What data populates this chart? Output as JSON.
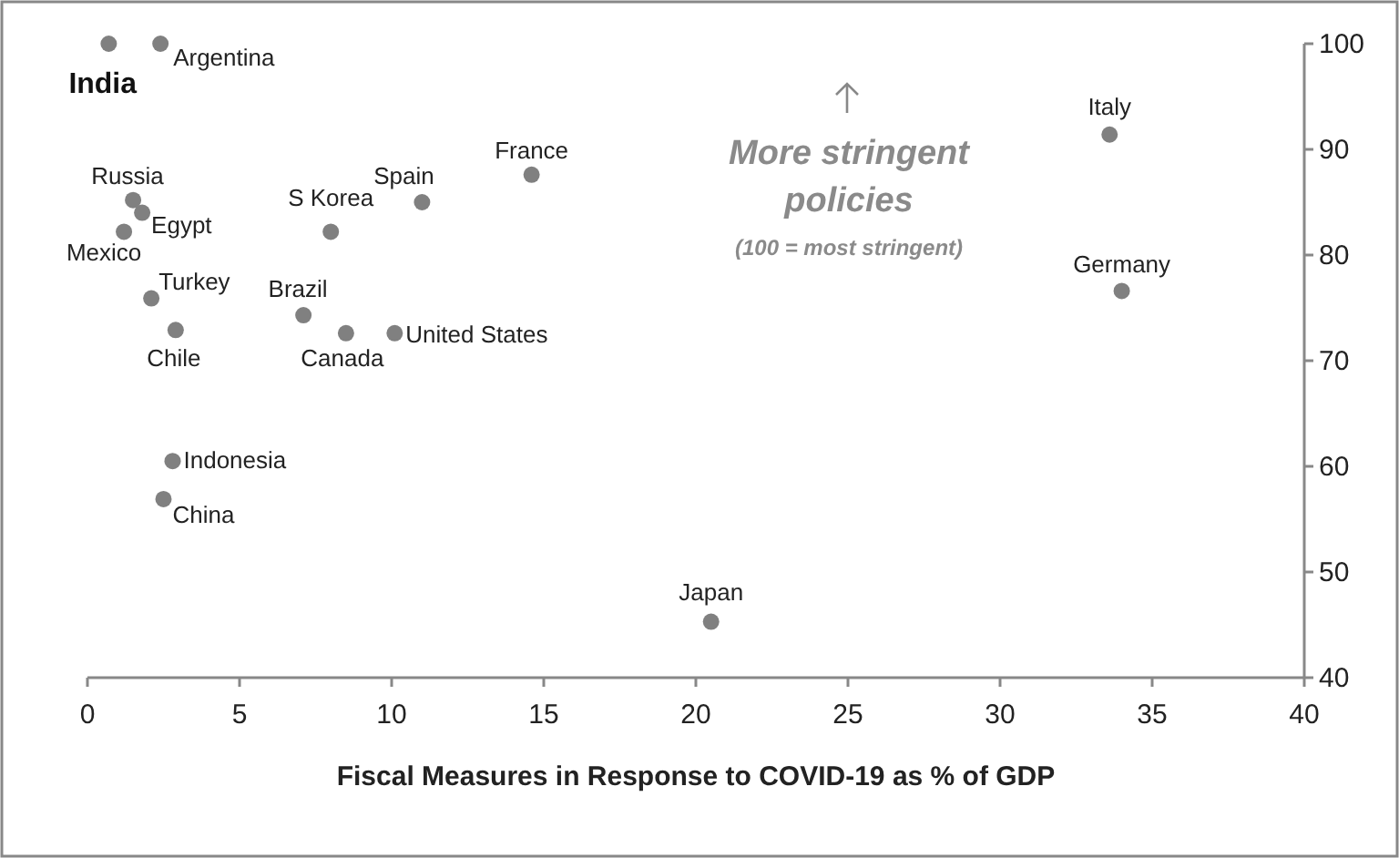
{
  "chart_data": {
    "type": "scatter",
    "xlabel": "Fiscal Measures in Response to COVID-19 as % of GDP",
    "xlim": [
      0,
      40
    ],
    "xticks": [
      0,
      5,
      10,
      15,
      20,
      25,
      30,
      35,
      40
    ],
    "ylim": [
      40,
      100
    ],
    "yticks": [
      40,
      50,
      60,
      70,
      80,
      90,
      100
    ],
    "grid": false,
    "marker": "circle",
    "annotations": [
      "More stringent policies",
      "(100 = most stringent)"
    ],
    "series": [
      {
        "name": "India",
        "color": "#808080",
        "x": [
          0.7
        ],
        "values": [
          100
        ]
      },
      {
        "name": "Argentina",
        "color": "#808080",
        "x": [
          2.4
        ],
        "values": [
          100
        ]
      },
      {
        "name": "Russia",
        "color": "#808080",
        "x": [
          1.5
        ],
        "values": [
          85.2
        ]
      },
      {
        "name": "Egypt",
        "color": "#808080",
        "x": [
          1.8
        ],
        "values": [
          84
        ]
      },
      {
        "name": "Mexico",
        "color": "#808080",
        "x": [
          1.2
        ],
        "values": [
          82.2
        ]
      },
      {
        "name": "Turkey",
        "color": "#808080",
        "x": [
          2.1
        ],
        "values": [
          75.9
        ]
      },
      {
        "name": "Chile",
        "color": "#808080",
        "x": [
          2.9
        ],
        "values": [
          72.9
        ]
      },
      {
        "name": "S Korea",
        "color": "#808080",
        "x": [
          8
        ],
        "values": [
          82.2
        ]
      },
      {
        "name": "Spain",
        "color": "#808080",
        "x": [
          11
        ],
        "values": [
          85
        ]
      },
      {
        "name": "France",
        "color": "#808080",
        "x": [
          14.6
        ],
        "values": [
          87.6
        ]
      },
      {
        "name": "Brazil",
        "color": "#808080",
        "x": [
          7.1
        ],
        "values": [
          74.3
        ]
      },
      {
        "name": "Canada",
        "color": "#808080",
        "x": [
          8.5
        ],
        "values": [
          72.6
        ]
      },
      {
        "name": "United States",
        "color": "#808080",
        "x": [
          10.1
        ],
        "values": [
          72.6
        ]
      },
      {
        "name": "Indonesia",
        "color": "#808080",
        "x": [
          2.8
        ],
        "values": [
          60.5
        ]
      },
      {
        "name": "China",
        "color": "#808080",
        "x": [
          2.5
        ],
        "values": [
          56.9
        ]
      },
      {
        "name": "Japan",
        "color": "#808080",
        "x": [
          20.5
        ],
        "values": [
          45.3
        ]
      },
      {
        "name": "Italy",
        "color": "#808080",
        "x": [
          33.6
        ],
        "values": [
          91.4
        ]
      },
      {
        "name": "Germany",
        "color": "#808080",
        "x": [
          34
        ],
        "values": [
          76.6
        ]
      }
    ]
  }
}
